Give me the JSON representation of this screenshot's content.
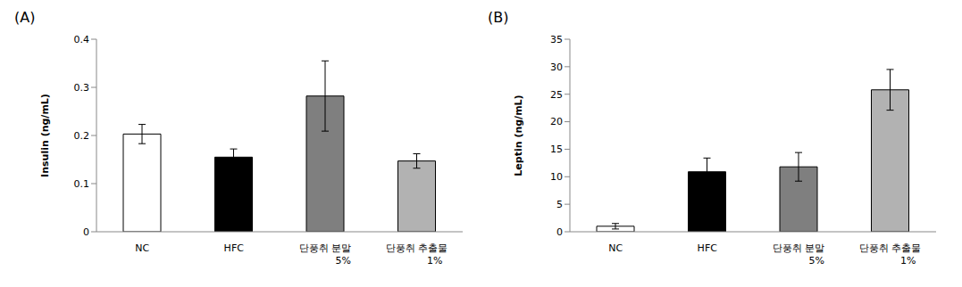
{
  "chart_data": [
    {
      "type": "bar",
      "title": "(A)",
      "y_label": "Insulin (ng/mL)",
      "categories": [
        "NC",
        "HFC",
        "단풍취 분말 5%",
        "단풍취 추출물 1%"
      ],
      "values": [
        0.203,
        0.155,
        0.282,
        0.147
      ],
      "errors": [
        0.02,
        0.017,
        0.073,
        0.015
      ],
      "colors": [
        "#ffffff",
        "#000000",
        "#7f7f7f",
        "#b2b2b2"
      ],
      "ylim": [
        0,
        0.4
      ],
      "yticks": [
        0,
        0.1,
        0.2,
        0.3,
        0.4
      ],
      "grid": false
    },
    {
      "type": "bar",
      "title": "(B)",
      "y_label": "Leptin (ng/mL)",
      "categories": [
        "NC",
        "HFC",
        "단풍취 분말 5%",
        "단풍취 추출물 1%"
      ],
      "values": [
        1.0,
        10.9,
        11.8,
        25.8
      ],
      "errors": [
        0.5,
        2.5,
        2.6,
        3.7
      ],
      "colors": [
        "#ffffff",
        "#000000",
        "#7f7f7f",
        "#b2b2b2"
      ],
      "ylim": [
        0,
        35
      ],
      "yticks": [
        0,
        5,
        10,
        15,
        20,
        25,
        30,
        35
      ],
      "grid": false
    }
  ]
}
